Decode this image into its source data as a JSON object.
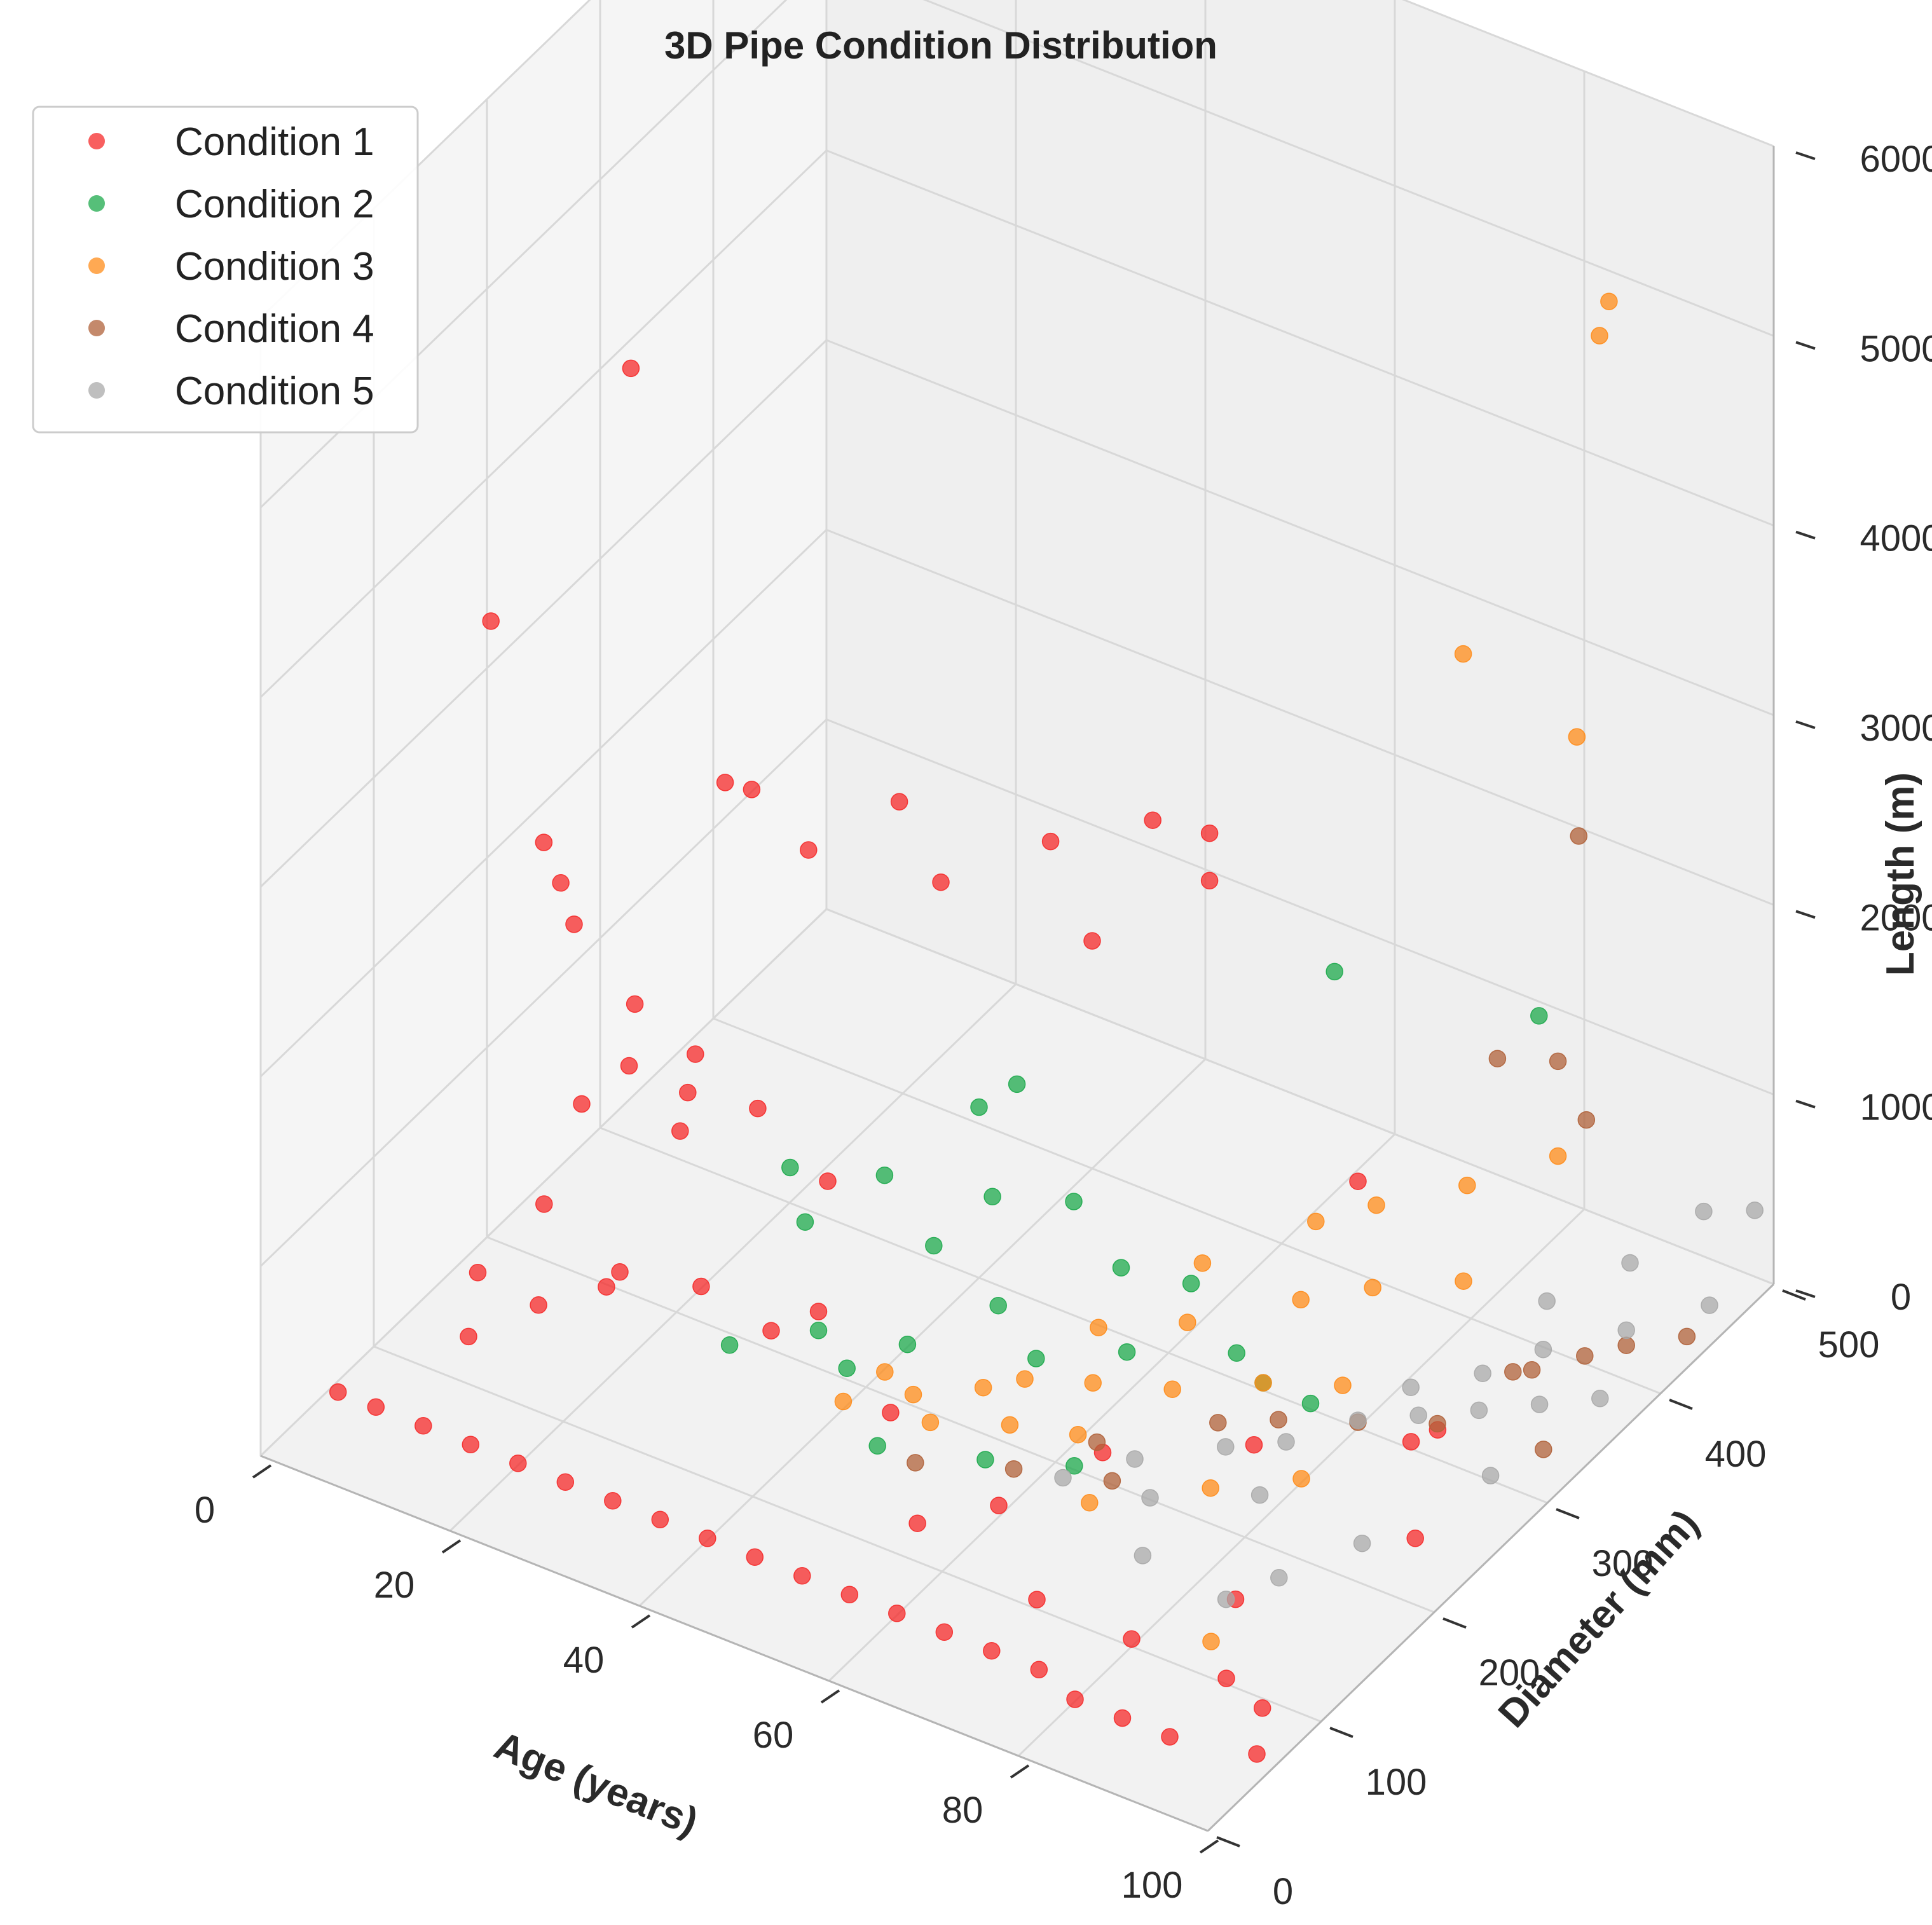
{
  "chart_data": {
    "type": "scatter",
    "projection": "3d",
    "title": "3D Pipe Condition Distribution",
    "xlabel": "Age (years)",
    "ylabel": "Diameter (mm)",
    "zlabel": "Length (m)",
    "xlim": [
      0,
      100
    ],
    "ylim": [
      0,
      500
    ],
    "zlim": [
      0,
      6000
    ],
    "xticks": [
      "0",
      "20",
      "40",
      "60",
      "80",
      "100"
    ],
    "yticks": [
      "0",
      "100",
      "200",
      "300",
      "400",
      "500"
    ],
    "zticks": [
      "0",
      "1000",
      "2000",
      "3000",
      "4000",
      "5000",
      "6000"
    ],
    "legend_position": "top-left",
    "grid": true,
    "series": [
      {
        "name": "Condition 1",
        "color": "#f52a2a",
        "points": [
          [
            4,
            170,
            3500
          ],
          [
            6,
            200,
            2200
          ],
          [
            6,
            215,
            1900
          ],
          [
            8,
            210,
            1750
          ],
          [
            14,
            210,
            4800
          ],
          [
            18,
            180,
            1700
          ],
          [
            16,
            300,
            2100
          ],
          [
            12,
            310,
            2000
          ],
          [
            22,
            300,
            1900
          ],
          [
            28,
            330,
            2100
          ],
          [
            30,
            350,
            1600
          ],
          [
            38,
            380,
            1800
          ],
          [
            44,
            420,
            1800
          ],
          [
            50,
            420,
            1850
          ],
          [
            22,
            200,
            1400
          ],
          [
            40,
            400,
            1200
          ],
          [
            50,
            420,
            1600
          ],
          [
            80,
            300,
            1300
          ],
          [
            15,
            200,
            1200
          ],
          [
            20,
            210,
            1100
          ],
          [
            25,
            230,
            1000
          ],
          [
            10,
            200,
            900
          ],
          [
            18,
            220,
            800
          ],
          [
            12,
            150,
            700
          ],
          [
            30,
            250,
            600
          ],
          [
            20,
            150,
            500
          ],
          [
            15,
            120,
            400
          ],
          [
            25,
            180,
            350
          ],
          [
            35,
            200,
            300
          ],
          [
            10,
            100,
            250
          ],
          [
            5,
            150,
            200
          ],
          [
            15,
            180,
            150
          ],
          [
            30,
            200,
            100
          ],
          [
            45,
            180,
            80
          ],
          [
            60,
            150,
            60
          ],
          [
            70,
            100,
            50
          ],
          [
            80,
            100,
            40
          ],
          [
            90,
            100,
            30
          ],
          [
            95,
            90,
            30
          ],
          [
            65,
            200,
            150
          ],
          [
            75,
            250,
            100
          ],
          [
            85,
            150,
            60
          ],
          [
            55,
            120,
            40
          ],
          [
            1,
            60,
            10
          ],
          [
            5,
            60,
            10
          ],
          [
            10,
            60,
            10
          ],
          [
            15,
            60,
            10
          ],
          [
            20,
            60,
            10
          ],
          [
            25,
            60,
            10
          ],
          [
            30,
            60,
            10
          ],
          [
            35,
            60,
            10
          ],
          [
            40,
            60,
            10
          ],
          [
            45,
            60,
            10
          ],
          [
            50,
            60,
            10
          ],
          [
            55,
            60,
            10
          ],
          [
            60,
            60,
            10
          ],
          [
            65,
            60,
            10
          ],
          [
            70,
            60,
            10
          ],
          [
            75,
            60,
            10
          ],
          [
            80,
            50,
            10
          ],
          [
            85,
            50,
            10
          ],
          [
            90,
            50,
            10
          ],
          [
            98,
            60,
            20
          ],
          [
            98,
            200,
            350
          ],
          [
            92,
            270,
            400
          ],
          [
            88,
            280,
            200
          ]
        ]
      },
      {
        "name": "Condition 2",
        "color": "#1daa4c",
        "points": [
          [
            62,
            430,
            1300
          ],
          [
            80,
            460,
            1250
          ],
          [
            40,
            300,
            900
          ],
          [
            36,
            250,
            750
          ],
          [
            45,
            270,
            700
          ],
          [
            50,
            300,
            600
          ],
          [
            30,
            230,
            500
          ],
          [
            40,
            260,
            400
          ],
          [
            55,
            300,
            350
          ],
          [
            60,
            320,
            250
          ],
          [
            48,
            250,
            300
          ],
          [
            35,
            200,
            200
          ],
          [
            42,
            220,
            150
          ],
          [
            52,
            250,
            100
          ],
          [
            58,
            280,
            80
          ],
          [
            66,
            310,
            60
          ],
          [
            70,
            300,
            40
          ],
          [
            28,
            180,
            100
          ],
          [
            38,
            200,
            60
          ],
          [
            46,
            160,
            40
          ],
          [
            55,
            180,
            30
          ],
          [
            62,
            200,
            20
          ],
          [
            75,
            300,
            30
          ],
          [
            32,
            200,
            1000
          ],
          [
            44,
            300,
            1100
          ]
        ]
      },
      {
        "name": "Condition 3",
        "color": "#ff8c1a",
        "points": [
          [
            85,
            480,
            5000
          ],
          [
            84,
            480,
            4800
          ],
          [
            72,
            460,
            3000
          ],
          [
            84,
            460,
            2800
          ],
          [
            60,
            330,
            300
          ],
          [
            66,
            380,
            350
          ],
          [
            70,
            400,
            400
          ],
          [
            76,
            430,
            450
          ],
          [
            82,
            460,
            550
          ],
          [
            62,
            300,
            200
          ],
          [
            68,
            350,
            150
          ],
          [
            72,
            380,
            120
          ],
          [
            78,
            410,
            100
          ],
          [
            55,
            280,
            150
          ],
          [
            58,
            250,
            90
          ],
          [
            64,
            270,
            60
          ],
          [
            70,
            300,
            40
          ],
          [
            76,
            320,
            30
          ],
          [
            50,
            220,
            80
          ],
          [
            45,
            200,
            60
          ],
          [
            40,
            180,
            40
          ],
          [
            48,
            190,
            30
          ],
          [
            54,
            210,
            20
          ],
          [
            66,
            180,
            20
          ],
          [
            74,
            220,
            25
          ],
          [
            80,
            250,
            20
          ],
          [
            86,
            120,
            30
          ],
          [
            42,
            200,
            120
          ],
          [
            52,
            240,
            50
          ],
          [
            60,
            220,
            30
          ]
        ]
      },
      {
        "name": "Condition 4",
        "color": "#b0623a",
        "points": [
          [
            83,
            470,
            2200
          ],
          [
            78,
            440,
            1100
          ],
          [
            82,
            460,
            1050
          ],
          [
            85,
            460,
            800
          ],
          [
            90,
            370,
            100
          ],
          [
            88,
            370,
            50
          ],
          [
            92,
            400,
            40
          ],
          [
            96,
            330,
            30
          ],
          [
            98,
            440,
            30
          ],
          [
            94,
            420,
            20
          ],
          [
            70,
            260,
            60
          ],
          [
            74,
            280,
            40
          ],
          [
            80,
            300,
            30
          ],
          [
            86,
            320,
            25
          ],
          [
            62,
            220,
            30
          ],
          [
            66,
            200,
            20
          ],
          [
            58,
            180,
            40
          ],
          [
            50,
            160,
            30
          ]
        ]
      },
      {
        "name": "Condition 5",
        "color": "#a9a9a9",
        "points": [
          [
            95,
            480,
            400
          ],
          [
            98,
            500,
            350
          ],
          [
            92,
            440,
            300
          ],
          [
            88,
            400,
            250
          ],
          [
            90,
            380,
            150
          ],
          [
            94,
            420,
            100
          ],
          [
            98,
            460,
            80
          ],
          [
            82,
            330,
            80
          ],
          [
            86,
            360,
            60
          ],
          [
            80,
            300,
            40
          ],
          [
            84,
            320,
            30
          ],
          [
            88,
            340,
            20
          ],
          [
            92,
            360,
            15
          ],
          [
            96,
            380,
            10
          ],
          [
            72,
            250,
            30
          ],
          [
            76,
            270,
            20
          ],
          [
            66,
            220,
            20
          ],
          [
            62,
            190,
            15
          ],
          [
            70,
            200,
            10
          ],
          [
            78,
            230,
            10
          ],
          [
            86,
            180,
            20
          ],
          [
            90,
            220,
            50
          ],
          [
            84,
            150,
            40
          ],
          [
            74,
            160,
            15
          ],
          [
            94,
            300,
            25
          ]
        ]
      }
    ]
  }
}
